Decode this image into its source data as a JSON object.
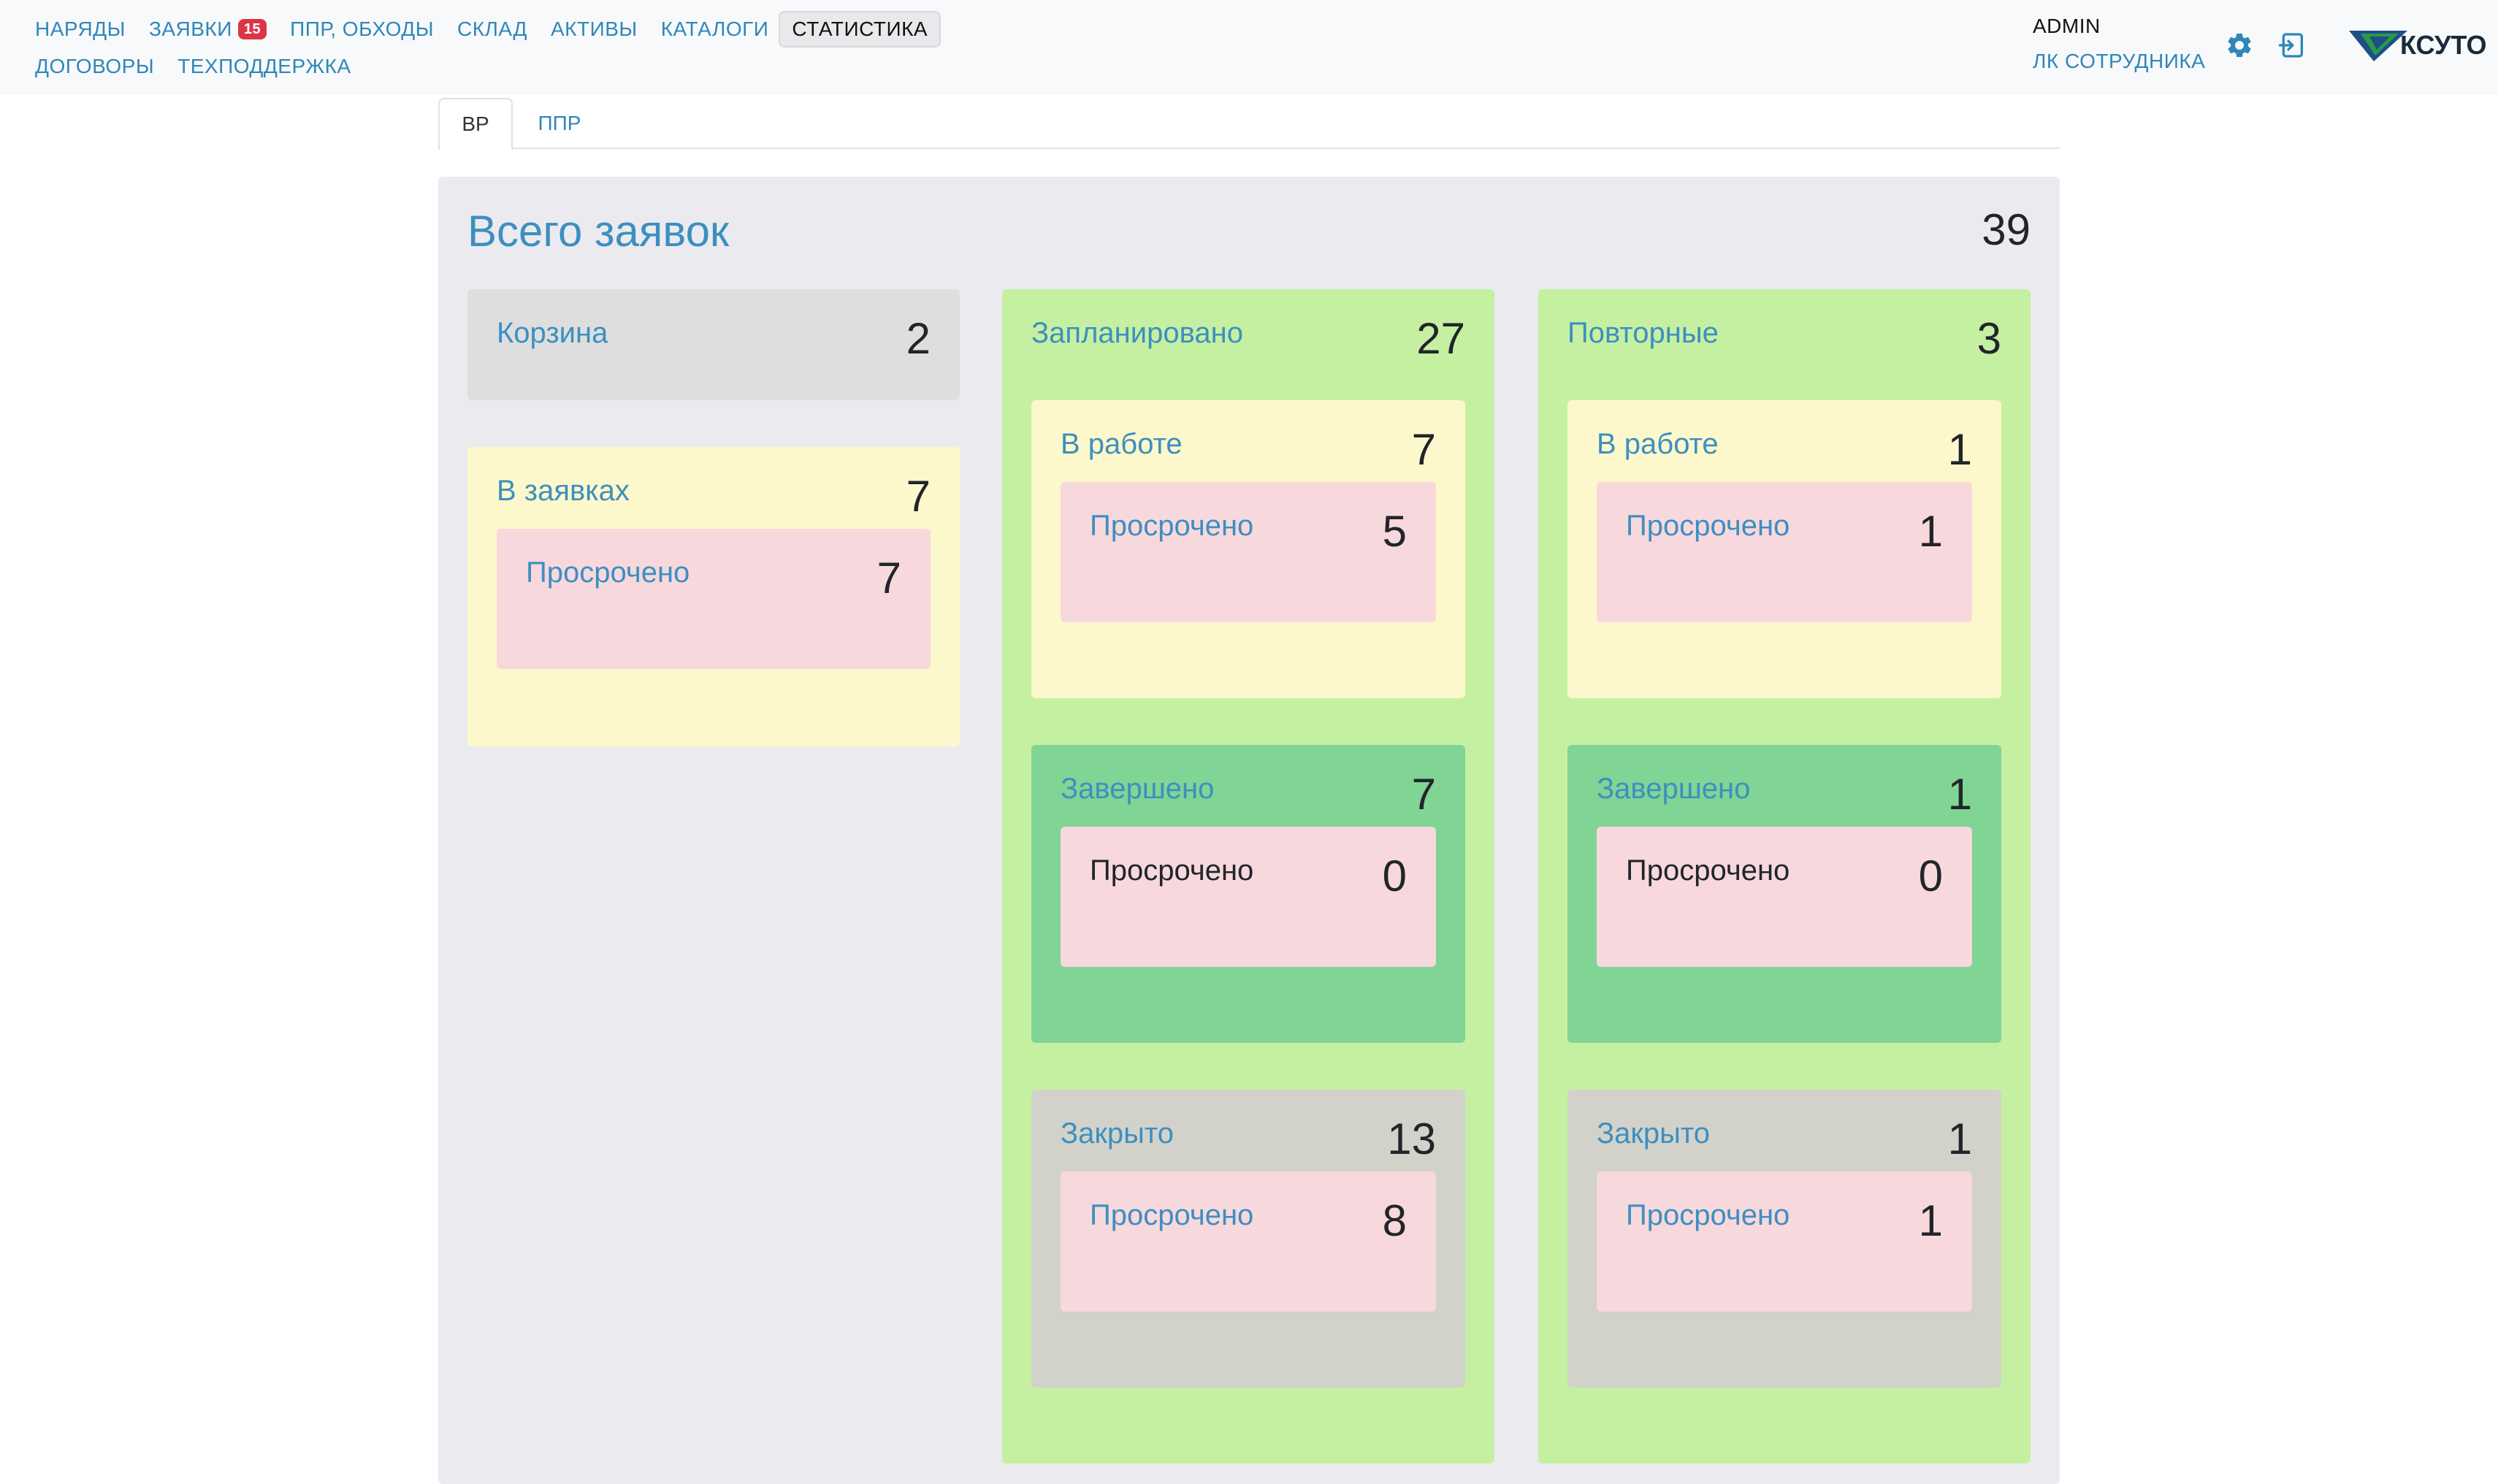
{
  "nav": {
    "row1": [
      {
        "label": "НАРЯДЫ"
      },
      {
        "label": "ЗАЯВКИ",
        "badge": "15"
      },
      {
        "label": "ППР, ОБХОДЫ"
      },
      {
        "label": "СКЛАД"
      },
      {
        "label": "АКТИВЫ"
      },
      {
        "label": "КАТАЛОГИ"
      },
      {
        "label": "СТАТИСТИКА",
        "active": true
      }
    ],
    "row2": [
      {
        "label": "ДОГОВОРЫ"
      },
      {
        "label": "ТЕХПОДДЕРЖКА"
      }
    ]
  },
  "user": {
    "name": "ADMIN",
    "cabinet_link": "ЛК СОТРУДНИКА"
  },
  "icons": {
    "settings": "gear-icon",
    "logout": "logout-icon",
    "logo": "ksuto-logo"
  },
  "logo_text": "КСУТО",
  "tabs": [
    {
      "label": "ВР",
      "active": true
    },
    {
      "label": "ППР",
      "active": false
    }
  ],
  "stats": {
    "title": "Всего заявок",
    "total": "39",
    "basket": {
      "label": "Корзина",
      "count": "2"
    },
    "in_requests": {
      "label": "В заявках",
      "count": "7",
      "overdue": {
        "label": "Просрочено",
        "count": "7"
      }
    },
    "planned": {
      "label": "Запланировано",
      "count": "27",
      "in_work": {
        "label": "В работе",
        "count": "7",
        "overdue": {
          "label": "Просрочено",
          "count": "5"
        }
      },
      "completed": {
        "label": "Завершено",
        "count": "7",
        "overdue": {
          "label": "Просрочено",
          "count": "0"
        }
      },
      "closed": {
        "label": "Закрыто",
        "count": "13",
        "overdue": {
          "label": "Просрочено",
          "count": "8"
        }
      }
    },
    "repeated": {
      "label": "Повторные",
      "count": "3",
      "in_work": {
        "label": "В работе",
        "count": "1",
        "overdue": {
          "label": "Просрочено",
          "count": "1"
        }
      },
      "completed": {
        "label": "Завершено",
        "count": "1",
        "overdue": {
          "label": "Просрочено",
          "count": "0"
        }
      },
      "closed": {
        "label": "Закрыто",
        "count": "1",
        "overdue": {
          "label": "Просрочено",
          "count": "1"
        }
      }
    }
  },
  "colors": {
    "accent": "#3d8fc0",
    "badge": "#dc3545",
    "yellow": "#fcf8cb",
    "green_column": "#c5f0a2",
    "green": "#80d494",
    "pink": "#f7d8dd",
    "gray": "#dedede",
    "closed": "#d2d2cb"
  }
}
